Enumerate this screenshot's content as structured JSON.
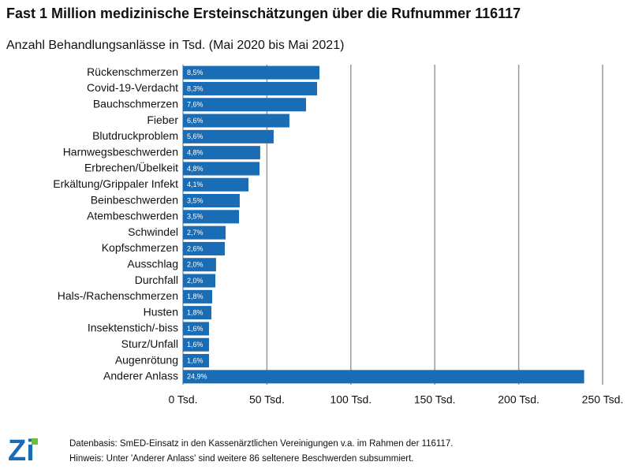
{
  "chart_data": {
    "type": "bar",
    "orientation": "horizontal",
    "title": "Fast 1 Million medizinische Ersteinschätzungen über die Rufnummer 116117",
    "subtitle": "Anzahl Behandlungsanlässe in Tsd. (Mai 2020 bis Mai 2021)",
    "categories": [
      "Rückenschmerzen",
      "Covid-19-Verdacht",
      "Bauchschmerzen",
      "Fieber",
      "Blutdruckproblem",
      "Harnwegsbeschwerden",
      "Erbrechen/Übelkeit",
      "Erkältung/Grippaler Infekt",
      "Beinbeschwerden",
      "Atembeschwerden",
      "Schwindel",
      "Kopfschmerzen",
      "Ausschlag",
      "Durchfall",
      "Hals-/Rachenschmerzen",
      "Husten",
      "Insektenstich/-biss",
      "Sturz/Unfall",
      "Augenrötung",
      "Anderer Anlass"
    ],
    "values": [
      81.3,
      79.9,
      73.3,
      63.4,
      54,
      46,
      45.6,
      39,
      33.8,
      33.4,
      25.4,
      24.9,
      19.7,
      19.3,
      17.4,
      16.9,
      15.5,
      15.5,
      15.5,
      239
    ],
    "share_labels": [
      "8,5%",
      "8,3%",
      "7,6%",
      "6,6%",
      "5,6%",
      "4,8%",
      "4,8%",
      "4,1%",
      "3,5%",
      "3,5%",
      "2,7%",
      "2,6%",
      "2,0%",
      "2,0%",
      "1,8%",
      "1,8%",
      "1,6%",
      "1,6%",
      "1,6%",
      "24,9%"
    ],
    "color": "#1a6cb5",
    "xlim": [
      0,
      250
    ],
    "xticks": [
      {
        "value": 0,
        "label": "0 Tsd."
      },
      {
        "value": 50,
        "label": "50 Tsd."
      },
      {
        "value": 100,
        "label": "100 Tsd."
      },
      {
        "value": 150,
        "label": "150 Tsd."
      },
      {
        "value": 200,
        "label": "200 Tsd."
      },
      {
        "value": 250,
        "label": "250 Tsd."
      }
    ],
    "grid": true
  },
  "footer": {
    "logo": "Zi",
    "notes": [
      "Datenbasis: SmED-Einsatz in den Kassenärztlichen Vereinigungen v.a. im Rahmen der 116117.",
      "Hinweis: Unter 'Anderer Anlass' sind weitere 86 seltenere Beschwerden subsummiert."
    ]
  }
}
